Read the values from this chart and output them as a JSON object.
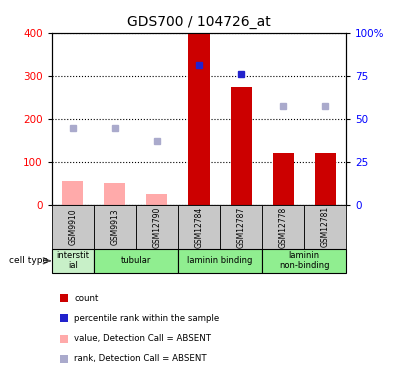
{
  "title": "GDS700 / 104726_at",
  "samples": [
    "GSM9910",
    "GSM9913",
    "GSM12790",
    "GSM12784",
    "GSM12787",
    "GSM12778",
    "GSM12781"
  ],
  "count_values": [
    0,
    0,
    0,
    400,
    275,
    120,
    120
  ],
  "count_absent": [
    55,
    52,
    25,
    0,
    0,
    0,
    0
  ],
  "rank_values": [
    0,
    0,
    0,
    325,
    305,
    0,
    0
  ],
  "rank_absent": [
    180,
    178,
    148,
    0,
    0,
    230,
    230
  ],
  "cell_type_defs": [
    {
      "label": "interstit\nial",
      "start": 0,
      "end": 1,
      "color": "#c8f0c8"
    },
    {
      "label": "tubular",
      "start": 1,
      "end": 3,
      "color": "#90ee90"
    },
    {
      "label": "laminin binding",
      "start": 3,
      "end": 5,
      "color": "#90ee90"
    },
    {
      "label": "laminin\nnon-binding",
      "start": 5,
      "end": 7,
      "color": "#90ee90"
    }
  ],
  "ylim_left": [
    0,
    400
  ],
  "ylim_right": [
    0,
    100
  ],
  "yticks_left": [
    0,
    100,
    200,
    300,
    400
  ],
  "yticks_right": [
    0,
    25,
    50,
    75,
    100
  ],
  "ytick_labels_right": [
    "0",
    "25",
    "50",
    "75",
    "100%"
  ],
  "color_count": "#cc0000",
  "color_rank": "#2222cc",
  "color_count_absent": "#ffaaaa",
  "color_rank_absent": "#aaaacc",
  "color_xticklabel_bg": "#c8c8c8",
  "bar_width": 0.5,
  "n_samples": 7
}
